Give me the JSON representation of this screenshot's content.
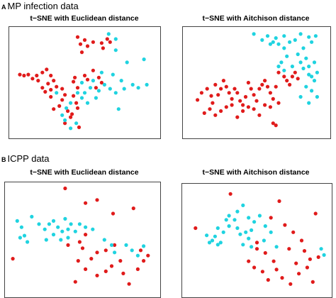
{
  "panels": [
    {
      "letter": "A",
      "title": "MP infection data"
    },
    {
      "letter": "B",
      "title": "ICPP data"
    }
  ],
  "colors": {
    "class_1": "#e01b1b",
    "class_2": "#1fd3e0",
    "frame": "#444444"
  },
  "chart_data": [
    {
      "type": "scatter",
      "title": "t−SNE with Euclidean distance",
      "xlabel": "",
      "ylabel": "",
      "xlim": [
        0,
        100
      ],
      "ylim": [
        0,
        100
      ],
      "grid": false,
      "series": [
        {
          "color": "#e01b1b",
          "points": [
            [
              45,
              95
            ],
            [
              50,
              92
            ],
            [
              47,
              88
            ],
            [
              52,
              86
            ],
            [
              56,
              90
            ],
            [
              62,
              89
            ],
            [
              66,
              93
            ],
            [
              68,
              90
            ],
            [
              63,
              84
            ],
            [
              48,
              80
            ],
            [
              4,
              58
            ],
            [
              7,
              57
            ],
            [
              10,
              58
            ],
            [
              13,
              54
            ],
            [
              16,
              57
            ],
            [
              17,
              52
            ],
            [
              20,
              60
            ],
            [
              23,
              63
            ],
            [
              26,
              57
            ],
            [
              28,
              52
            ],
            [
              24,
              49
            ],
            [
              20,
              45
            ],
            [
              22,
              41
            ],
            [
              26,
              43
            ],
            [
              30,
              46
            ],
            [
              34,
              44
            ],
            [
              36,
              38
            ],
            [
              42,
              37
            ],
            [
              44,
              30
            ],
            [
              45,
              25
            ],
            [
              40,
              16
            ],
            [
              36,
              10
            ],
            [
              46,
              6
            ],
            [
              42,
              51
            ],
            [
              50,
              57
            ],
            [
              56,
              62
            ],
            [
              60,
              55
            ],
            [
              62,
              50
            ],
            [
              52,
              53
            ],
            [
              58,
              45
            ],
            [
              26,
              36
            ],
            [
              34,
              33
            ],
            [
              32,
              27
            ],
            [
              28,
              24
            ],
            [
              38,
              22
            ],
            [
              41,
              19
            ],
            [
              43,
              55
            ],
            [
              45,
              45
            ]
          ]
        },
        {
          "color": "#1fd3e0",
          "points": [
            [
              67,
              98
            ],
            [
              72,
              93
            ],
            [
              72,
              82
            ],
            [
              80,
              70
            ],
            [
              92,
              73
            ],
            [
              62,
              60
            ],
            [
              70,
              58
            ],
            [
              56,
              52
            ],
            [
              48,
              50
            ],
            [
              54,
              45
            ],
            [
              64,
              48
            ],
            [
              76,
              52
            ],
            [
              84,
              48
            ],
            [
              88,
              45
            ],
            [
              94,
              48
            ],
            [
              78,
              44
            ],
            [
              60,
              42
            ],
            [
              50,
              40
            ],
            [
              48,
              35
            ],
            [
              40,
              30
            ],
            [
              37,
              25
            ],
            [
              34,
              18
            ],
            [
              36,
              13
            ],
            [
              44,
              10
            ],
            [
              40,
              5
            ],
            [
              45,
              40
            ],
            [
              30,
              40
            ],
            [
              52,
              30
            ],
            [
              58,
              35
            ],
            [
              68,
              44
            ],
            [
              72,
              40
            ],
            [
              74,
              24
            ]
          ]
        }
      ]
    },
    {
      "type": "scatter",
      "title": "t−SNE with Aitchison distance",
      "xlabel": "",
      "ylabel": "",
      "xlim": [
        0,
        100
      ],
      "ylim": [
        0,
        100
      ],
      "grid": false,
      "series": [
        {
          "color": "#e01b1b",
          "points": [
            [
              7,
              33
            ],
            [
              10,
              40
            ],
            [
              14,
              44
            ],
            [
              17,
              37
            ],
            [
              18,
              30
            ],
            [
              22,
              38
            ],
            [
              20,
              48
            ],
            [
              24,
              44
            ],
            [
              26,
              52
            ],
            [
              28,
              46
            ],
            [
              30,
              40
            ],
            [
              32,
              34
            ],
            [
              34,
              44
            ],
            [
              36,
              40
            ],
            [
              38,
              32
            ],
            [
              40,
              28
            ],
            [
              42,
              36
            ],
            [
              44,
              50
            ],
            [
              46,
              44
            ],
            [
              48,
              38
            ],
            [
              50,
              32
            ],
            [
              52,
              44
            ],
            [
              54,
              48
            ],
            [
              56,
              52
            ],
            [
              58,
              46
            ],
            [
              60,
              40
            ],
            [
              62,
              34
            ],
            [
              64,
              46
            ],
            [
              66,
              60
            ],
            [
              70,
              56
            ],
            [
              72,
              52
            ],
            [
              74,
              48
            ],
            [
              76,
              56
            ],
            [
              78,
              60
            ],
            [
              80,
              54
            ],
            [
              12,
              20
            ],
            [
              16,
              24
            ],
            [
              20,
              18
            ],
            [
              24,
              22
            ],
            [
              28,
              26
            ],
            [
              32,
              28
            ],
            [
              36,
              16
            ],
            [
              40,
              22
            ],
            [
              44,
              26
            ],
            [
              52,
              18
            ],
            [
              56,
              28
            ],
            [
              60,
              26
            ],
            [
              62,
              10
            ],
            [
              64,
              8
            ],
            [
              66,
              30
            ],
            [
              48,
              24
            ]
          ]
        },
        {
          "color": "#1fd3e0",
          "points": [
            [
              48,
              98
            ],
            [
              54,
              92
            ],
            [
              58,
              96
            ],
            [
              62,
              90
            ],
            [
              66,
              88
            ],
            [
              70,
              84
            ],
            [
              74,
              90
            ],
            [
              78,
              92
            ],
            [
              82,
              98
            ],
            [
              88,
              95
            ],
            [
              93,
              96
            ],
            [
              90,
              90
            ],
            [
              84,
              84
            ],
            [
              80,
              78
            ],
            [
              86,
              74
            ],
            [
              92,
              70
            ],
            [
              88,
              66
            ],
            [
              94,
              60
            ],
            [
              90,
              56
            ],
            [
              72,
              76
            ],
            [
              68,
              70
            ],
            [
              66,
              66
            ],
            [
              70,
              62
            ],
            [
              76,
              66
            ],
            [
              82,
              70
            ],
            [
              84,
              64
            ],
            [
              88,
              58
            ],
            [
              92,
              52
            ],
            [
              86,
              46
            ],
            [
              90,
              42
            ],
            [
              94,
              36
            ],
            [
              88,
              30
            ],
            [
              82,
              36
            ],
            [
              60,
              88
            ],
            [
              64,
              94
            ],
            [
              70,
              96
            ]
          ]
        }
      ]
    },
    {
      "type": "scatter",
      "title": "t−SNE with Euclidean distance",
      "xlabel": "",
      "ylabel": "",
      "xlim": [
        0,
        100
      ],
      "ylim": [
        0,
        100
      ],
      "grid": false,
      "series": [
        {
          "color": "#e01b1b",
          "points": [
            [
              38,
              99
            ],
            [
              52,
              85
            ],
            [
              60,
              88
            ],
            [
              71,
              75
            ],
            [
              85,
              80
            ],
            [
              2,
              32
            ],
            [
              40,
              45
            ],
            [
              48,
              48
            ],
            [
              50,
              42
            ],
            [
              56,
              32
            ],
            [
              60,
              16
            ],
            [
              45,
              10
            ],
            [
              47,
              30
            ],
            [
              52,
              22
            ],
            [
              66,
              20
            ],
            [
              70,
              25
            ],
            [
              82,
              8
            ],
            [
              90,
              40
            ],
            [
              92,
              30
            ],
            [
              95,
              35
            ],
            [
              72,
              45
            ],
            [
              76,
              30
            ],
            [
              60,
              38
            ],
            [
              78,
              18
            ],
            [
              88,
              22
            ],
            [
              66,
              40
            ],
            [
              52,
              55
            ]
          ]
        },
        {
          "color": "#1fd3e0",
          "points": [
            [
              5,
              68
            ],
            [
              8,
              62
            ],
            [
              10,
              54
            ],
            [
              7,
              52
            ],
            [
              12,
              48
            ],
            [
              15,
              72
            ],
            [
              20,
              65
            ],
            [
              24,
              60
            ],
            [
              27,
              65
            ],
            [
              30,
              68
            ],
            [
              33,
              62
            ],
            [
              36,
              58
            ],
            [
              38,
              70
            ],
            [
              40,
              60
            ],
            [
              42,
              65
            ],
            [
              45,
              58
            ],
            [
              25,
              50
            ],
            [
              30,
              55
            ],
            [
              35,
              50
            ],
            [
              40,
              52
            ],
            [
              48,
              65
            ],
            [
              52,
              62
            ],
            [
              57,
              60
            ],
            [
              65,
              50
            ],
            [
              70,
              45
            ],
            [
              72,
              38
            ],
            [
              80,
              45
            ],
            [
              84,
              40
            ],
            [
              88,
              35
            ],
            [
              92,
              44
            ]
          ]
        }
      ]
    },
    {
      "type": "scatter",
      "title": "t−SNE with Aitchison distance",
      "xlabel": "",
      "ylabel": "",
      "xlim": [
        0,
        100
      ],
      "ylim": [
        0,
        100
      ],
      "grid": false,
      "series": [
        {
          "color": "#e01b1b",
          "points": [
            [
              31,
              95
            ],
            [
              66,
              88
            ],
            [
              60,
              72
            ],
            [
              92,
              76
            ],
            [
              70,
              65
            ],
            [
              82,
              50
            ],
            [
              73,
              42
            ],
            [
              50,
              42
            ],
            [
              56,
              38
            ],
            [
              44,
              30
            ],
            [
              48,
              24
            ],
            [
              62,
              30
            ],
            [
              64,
              22
            ],
            [
              54,
              20
            ],
            [
              58,
              12
            ],
            [
              68,
              14
            ],
            [
              80,
              18
            ],
            [
              88,
              32
            ],
            [
              86,
              24
            ],
            [
              90,
              10
            ],
            [
              74,
              8
            ],
            [
              78,
              28
            ],
            [
              94,
              34
            ],
            [
              76,
              58
            ],
            [
              50,
              48
            ],
            [
              84,
              40
            ],
            [
              6,
              62
            ]
          ]
        },
        {
          "color": "#1fd3e0",
          "points": [
            [
              14,
              55
            ],
            [
              18,
              50
            ],
            [
              20,
              54
            ],
            [
              22,
              46
            ],
            [
              26,
              58
            ],
            [
              30,
              64
            ],
            [
              34,
              70
            ],
            [
              36,
              62
            ],
            [
              38,
              56
            ],
            [
              42,
              58
            ],
            [
              46,
              60
            ],
            [
              44,
              72
            ],
            [
              48,
              68
            ],
            [
              52,
              74
            ],
            [
              36,
              78
            ],
            [
              40,
              84
            ],
            [
              30,
              74
            ],
            [
              28,
              70
            ],
            [
              16,
              48
            ],
            [
              24,
              48
            ],
            [
              44,
              52
            ],
            [
              40,
              46
            ],
            [
              46,
              44
            ],
            [
              56,
              64
            ],
            [
              60,
              58
            ],
            [
              96,
              42
            ],
            [
              98,
              36
            ],
            [
              55,
              50
            ],
            [
              64,
              44
            ],
            [
              22,
              62
            ]
          ]
        }
      ]
    }
  ]
}
